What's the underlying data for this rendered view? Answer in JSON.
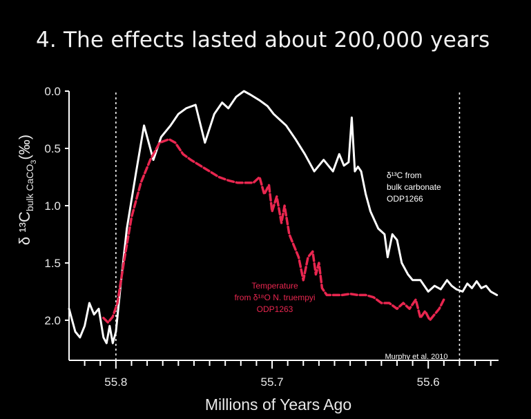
{
  "slide": {
    "title": "4. The effects lasted about 200,000 years"
  },
  "colors": {
    "background": "#000000",
    "axis": "#ffffff",
    "carbon_series": "#ffffff",
    "temperature_series": "#e8264f"
  },
  "chart_data": {
    "type": "line",
    "xlabel": "Millions of Years Ago",
    "ylabel": "δ ¹³C",
    "ylabel_subscript": "bulk CaCO",
    "ylabel_sub2": "3",
    "ylabel_unit": "(‰)",
    "xlim": [
      55.83,
      55.555
    ],
    "ylim": [
      0.0,
      2.35
    ],
    "y_inverted": true,
    "x_ticks": [
      55.8,
      55.7,
      55.6
    ],
    "x_tick_labels": [
      "55.8",
      "55.7",
      "55.6"
    ],
    "y_ticks": [
      0.0,
      0.5,
      1.0,
      1.5,
      2.0
    ],
    "y_tick_labels": [
      "0.0",
      "0.5",
      "1.0",
      "1.5",
      "2.0"
    ],
    "vertical_markers": [
      55.8,
      55.58
    ],
    "grid": false,
    "series": [
      {
        "label_lines": [
          "δ¹³C from",
          "bulk carbonate",
          "ODP1266"
        ],
        "x": [
          55.83,
          55.826,
          55.823,
          55.82,
          55.817,
          55.814,
          55.811,
          55.808,
          55.806,
          55.804,
          55.802,
          55.8,
          55.797,
          55.793,
          55.787,
          55.782,
          55.776,
          55.771,
          55.765,
          55.76,
          55.755,
          55.749,
          55.743,
          55.737,
          55.732,
          55.728,
          55.723,
          55.718,
          55.714,
          55.708,
          55.703,
          55.699,
          55.695,
          55.691,
          55.685,
          55.679,
          55.673,
          55.667,
          55.661,
          55.657,
          55.654,
          55.651,
          55.649,
          55.647,
          55.645,
          55.643,
          55.64,
          55.637,
          55.632,
          55.628,
          55.626,
          55.623,
          55.62,
          55.617,
          55.613,
          55.61,
          55.605,
          55.6,
          55.596,
          55.592,
          55.588,
          55.585,
          55.582,
          55.578,
          55.575,
          55.572,
          55.569,
          55.566,
          55.563,
          55.56,
          55.556
        ],
        "y": [
          1.9,
          2.1,
          2.15,
          2.05,
          1.85,
          1.95,
          1.9,
          2.15,
          2.2,
          2.05,
          2.2,
          2.1,
          1.7,
          1.2,
          0.7,
          0.3,
          0.6,
          0.4,
          0.3,
          0.2,
          0.15,
          0.12,
          0.45,
          0.2,
          0.1,
          0.15,
          0.05,
          0.0,
          0.03,
          0.08,
          0.13,
          0.2,
          0.25,
          0.3,
          0.42,
          0.55,
          0.7,
          0.6,
          0.7,
          0.55,
          0.65,
          0.62,
          0.23,
          0.7,
          0.66,
          0.7,
          0.9,
          1.05,
          1.2,
          1.25,
          1.45,
          1.25,
          1.3,
          1.5,
          1.6,
          1.65,
          1.65,
          1.75,
          1.7,
          1.73,
          1.65,
          1.7,
          1.73,
          1.75,
          1.68,
          1.72,
          1.66,
          1.72,
          1.7,
          1.75,
          1.78
        ]
      },
      {
        "label_lines": [
          "Temperature",
          "from δ¹⁸O N. truempyi",
          "ODP1263"
        ],
        "x": [
          55.808,
          55.805,
          55.802,
          55.799,
          55.795,
          55.79,
          55.784,
          55.778,
          55.772,
          55.766,
          55.762,
          55.757,
          55.752,
          55.746,
          55.74,
          55.734,
          55.728,
          55.722,
          55.717,
          55.712,
          55.708,
          55.705,
          55.702,
          55.7,
          55.697,
          55.694,
          55.692,
          55.689,
          55.686,
          55.683,
          55.68,
          55.677,
          55.674,
          55.672,
          55.67,
          55.668,
          55.665,
          55.66,
          55.655,
          55.65,
          55.645,
          55.64,
          55.635,
          55.63,
          55.625,
          55.62,
          55.616,
          55.612,
          55.608,
          55.605,
          55.602,
          55.599,
          55.596,
          55.593,
          55.59
        ],
        "y": [
          1.98,
          2.02,
          1.97,
          1.85,
          1.5,
          1.1,
          0.8,
          0.6,
          0.45,
          0.42,
          0.45,
          0.55,
          0.6,
          0.65,
          0.7,
          0.75,
          0.78,
          0.8,
          0.8,
          0.8,
          0.75,
          0.9,
          0.82,
          1.05,
          0.92,
          1.15,
          1.0,
          1.25,
          1.35,
          1.45,
          1.65,
          1.45,
          1.4,
          1.6,
          1.5,
          1.72,
          1.78,
          1.78,
          1.78,
          1.77,
          1.78,
          1.78,
          1.8,
          1.85,
          1.85,
          1.9,
          1.85,
          1.9,
          1.82,
          1.98,
          1.92,
          2.0,
          1.95,
          1.9,
          1.82
        ]
      }
    ],
    "annotations": [
      {
        "text": "Murphy et al. 2010",
        "position": "bottom-right"
      }
    ]
  }
}
